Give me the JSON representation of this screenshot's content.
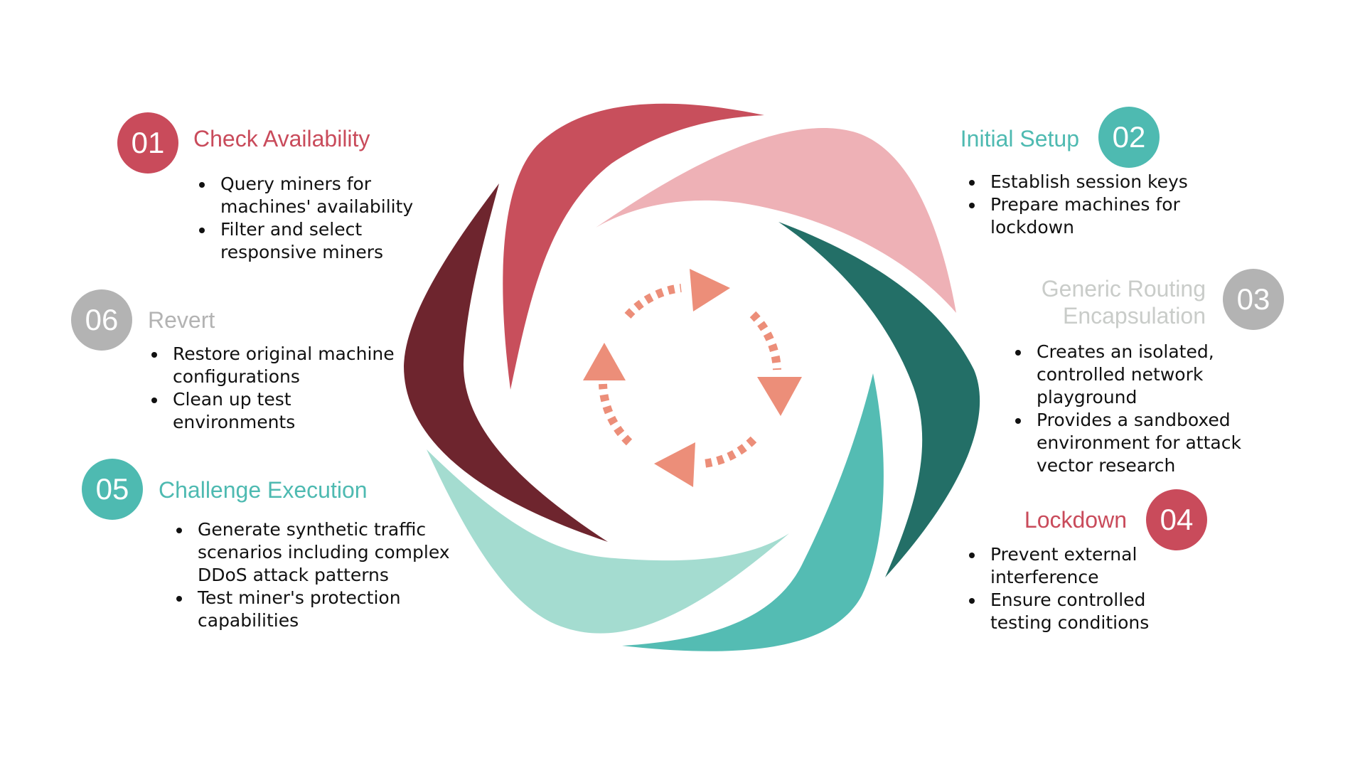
{
  "colors": {
    "step1": "#C84F5C",
    "step2": "#EEB1B6",
    "step3": "#236F67",
    "step4": "#54BCB3",
    "step5": "#A4DCD0",
    "step6": "#6E252E",
    "arrows": "#EC8E79",
    "badge_teal": "#4EBAB1",
    "badge_red": "#C94B5B",
    "badge_gray": "#B3B3B3",
    "title_teal": "#4EBAB1",
    "title_red": "#C94B5B",
    "title_gray": "#B3B3B3",
    "title_pale": "#C9CCC9"
  },
  "icons": [
    "cycle-arrows-icon"
  ],
  "steps": [
    {
      "number": "01",
      "title": "Check Availability",
      "bullets": [
        "Query miners for machines' availability",
        "Filter and select responsive miners"
      ]
    },
    {
      "number": "02",
      "title": "Initial Setup",
      "bullets": [
        "Establish session keys",
        "Prepare  machines  for lockdown"
      ]
    },
    {
      "number": "03",
      "title_line1": "Generic Routing",
      "title_line2": "Encapsulation",
      "bullets": [
        "Creates an isolated, controlled network playground",
        "Provides a sandboxed environment for attack vector research"
      ]
    },
    {
      "number": "04",
      "title": "Lockdown",
      "bullets": [
        "Prevent external interference",
        "Ensure controlled testing conditions"
      ]
    },
    {
      "number": "05",
      "title": "Challenge Execution",
      "bullets": [
        "Generate synthetic traffic scenarios including complex DDoS attack patterns",
        "Test miner's protection capabilities"
      ]
    },
    {
      "number": "06",
      "title": "Revert",
      "bullets": [
        "Restore original machine configurations",
        "Clean up test environments"
      ]
    }
  ]
}
